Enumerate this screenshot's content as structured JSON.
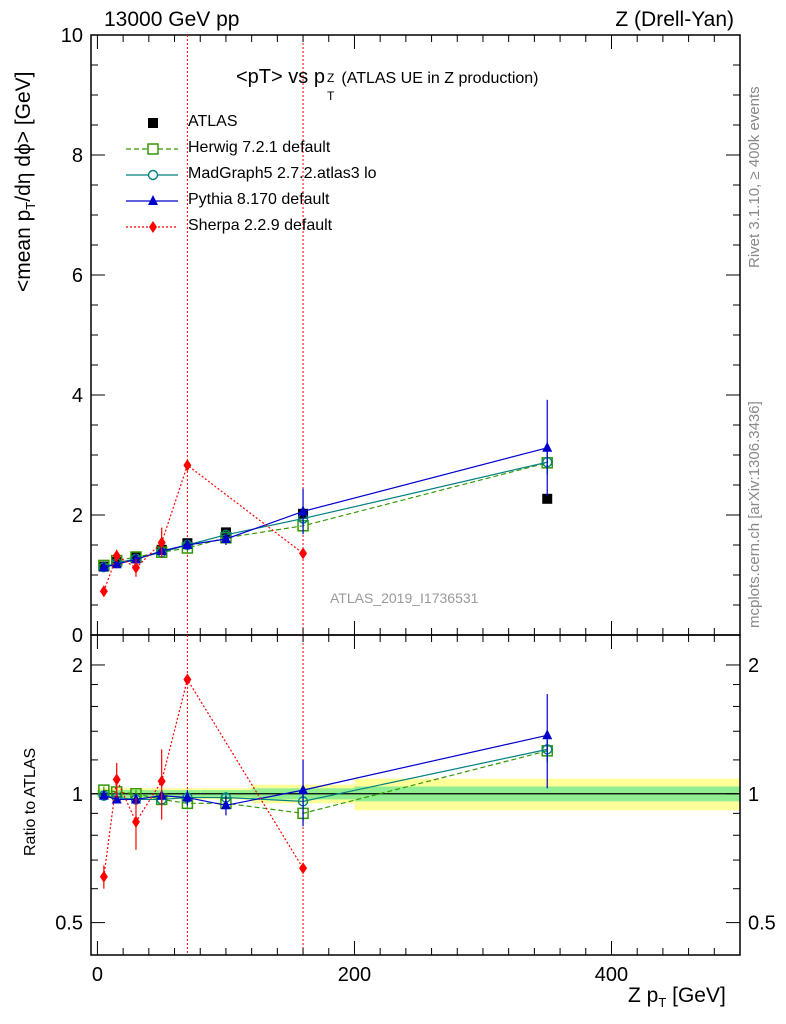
{
  "header": {
    "left": "13000 GeV pp",
    "right": "Z (Drell-Yan)"
  },
  "side_labels": {
    "rivet": "Rivet 3.1.10, ≥ 400k events",
    "mcplots": "mcplots.cern.ch [arXiv:1306.3436]"
  },
  "plot_title": {
    "main": "<pT> vs p",
    "sub": "T",
    "sup": "Z",
    "suffix": " (ATLAS UE in Z production)"
  },
  "watermark": "ATLAS_2019_I1736531",
  "chart_data": [
    {
      "type": "scatter",
      "name": "main",
      "ylabel": "<mean p_T/dη dϕ> [GeV]",
      "ylim": [
        0,
        10
      ],
      "xlim": [
        -5,
        500
      ],
      "yticks": [
        "0",
        "2",
        "4",
        "6",
        "8",
        "10"
      ],
      "x_bin_edges": [
        0,
        10,
        20,
        40,
        60,
        80,
        120,
        200,
        500
      ],
      "vlines": [
        70,
        160
      ],
      "legend_position": "top-left",
      "reference": {
        "name": "ATLAS",
        "color": "#000000",
        "x": [
          5,
          15,
          30,
          50,
          70,
          100,
          160,
          350
        ],
        "y": [
          1.14,
          1.22,
          1.3,
          1.42,
          1.53,
          1.71,
          2.02,
          2.27
        ]
      },
      "series": [
        {
          "name": "Herwig 7.2.1 default",
          "color": "#339900",
          "dash": "dashed",
          "marker": "open-square",
          "x": [
            5,
            15,
            30,
            50,
            70,
            100,
            160,
            350
          ],
          "y": [
            1.16,
            1.24,
            1.3,
            1.38,
            1.45,
            1.62,
            1.82,
            2.87
          ],
          "err": [
            0.03,
            0.04,
            0.04,
            0.06,
            0.06,
            0.07,
            0.1,
            0.2
          ]
        },
        {
          "name": "MadGraph5 2.7.2.atlas3 lo",
          "color": "#008080",
          "dash": "solid",
          "marker": "open-circle",
          "x": [
            5,
            15,
            30,
            50,
            70,
            100,
            160,
            350
          ],
          "y": [
            1.13,
            1.2,
            1.27,
            1.38,
            1.5,
            1.67,
            1.94,
            2.88
          ],
          "err": [
            0.03,
            0.04,
            0.04,
            0.06,
            0.06,
            0.07,
            0.1,
            0.2
          ]
        },
        {
          "name": "Pythia 8.170 default",
          "color": "#0000cc",
          "dash": "solid",
          "marker": "filled-triangle",
          "x": [
            5,
            15,
            30,
            50,
            70,
            100,
            160,
            350
          ],
          "y": [
            1.13,
            1.18,
            1.26,
            1.4,
            1.5,
            1.6,
            2.06,
            3.12
          ],
          "err": [
            0.03,
            0.04,
            0.05,
            0.06,
            0.08,
            0.1,
            0.38,
            0.8
          ]
        },
        {
          "name": "Sherpa 2.2.9 default",
          "color": "#ff0000",
          "dash": "dotted",
          "marker": "filled-diamond",
          "x": [
            5,
            15,
            30,
            50,
            70,
            160
          ],
          "y": [
            0.73,
            1.32,
            1.12,
            1.54,
            2.83,
            1.36
          ],
          "err": [
            0.05,
            0.1,
            0.15,
            0.25,
            0.0,
            0.0
          ]
        }
      ]
    },
    {
      "type": "scatter",
      "name": "ratio",
      "ylabel": "Ratio to ATLAS",
      "ylim": [
        0.42,
        2.35
      ],
      "ylog": true,
      "xlabel": "Z p_T [GeV]",
      "xticks": [
        "0",
        "200",
        "400"
      ],
      "yticks": [
        "0.5",
        "1",
        "2"
      ],
      "band_x_edges": [
        0,
        10,
        20,
        40,
        60,
        80,
        120,
        200,
        500
      ],
      "band_stat": [
        0.02,
        0.02,
        0.02,
        0.02,
        0.02,
        0.02,
        0.03,
        0.04
      ],
      "band_total": [
        0.03,
        0.03,
        0.03,
        0.03,
        0.03,
        0.03,
        0.05,
        0.085
      ],
      "series": [
        {
          "name": "Herwig 7.2.1 default",
          "x": [
            5,
            15,
            30,
            50,
            70,
            100,
            160,
            350
          ],
          "y": [
            1.02,
            1.01,
            1.0,
            0.97,
            0.95,
            0.95,
            0.9,
            1.26
          ],
          "err": [
            0.02,
            0.02,
            0.02,
            0.03,
            0.03,
            0.03,
            0.04,
            0.08
          ]
        },
        {
          "name": "MadGraph5 2.7.2.atlas3 lo",
          "x": [
            5,
            15,
            30,
            50,
            70,
            100,
            160,
            350
          ],
          "y": [
            0.99,
            0.98,
            0.97,
            0.97,
            0.98,
            0.98,
            0.96,
            1.27
          ],
          "err": [
            0.02,
            0.02,
            0.02,
            0.03,
            0.03,
            0.03,
            0.04,
            0.08
          ]
        },
        {
          "name": "Pythia 8.170 default",
          "x": [
            5,
            15,
            30,
            50,
            70,
            100,
            160,
            350
          ],
          "y": [
            0.99,
            0.97,
            0.97,
            0.99,
            0.98,
            0.94,
            1.02,
            1.37
          ],
          "err": [
            0.02,
            0.02,
            0.03,
            0.03,
            0.04,
            0.05,
            0.18,
            0.34
          ]
        },
        {
          "name": "Sherpa 2.2.9 default",
          "x": [
            5,
            15,
            30,
            50,
            70,
            160
          ],
          "y": [
            0.64,
            1.08,
            0.86,
            1.07,
            1.85,
            0.67
          ],
          "err": [
            0.04,
            0.1,
            0.12,
            0.2,
            0.0,
            0.0
          ]
        }
      ]
    }
  ]
}
